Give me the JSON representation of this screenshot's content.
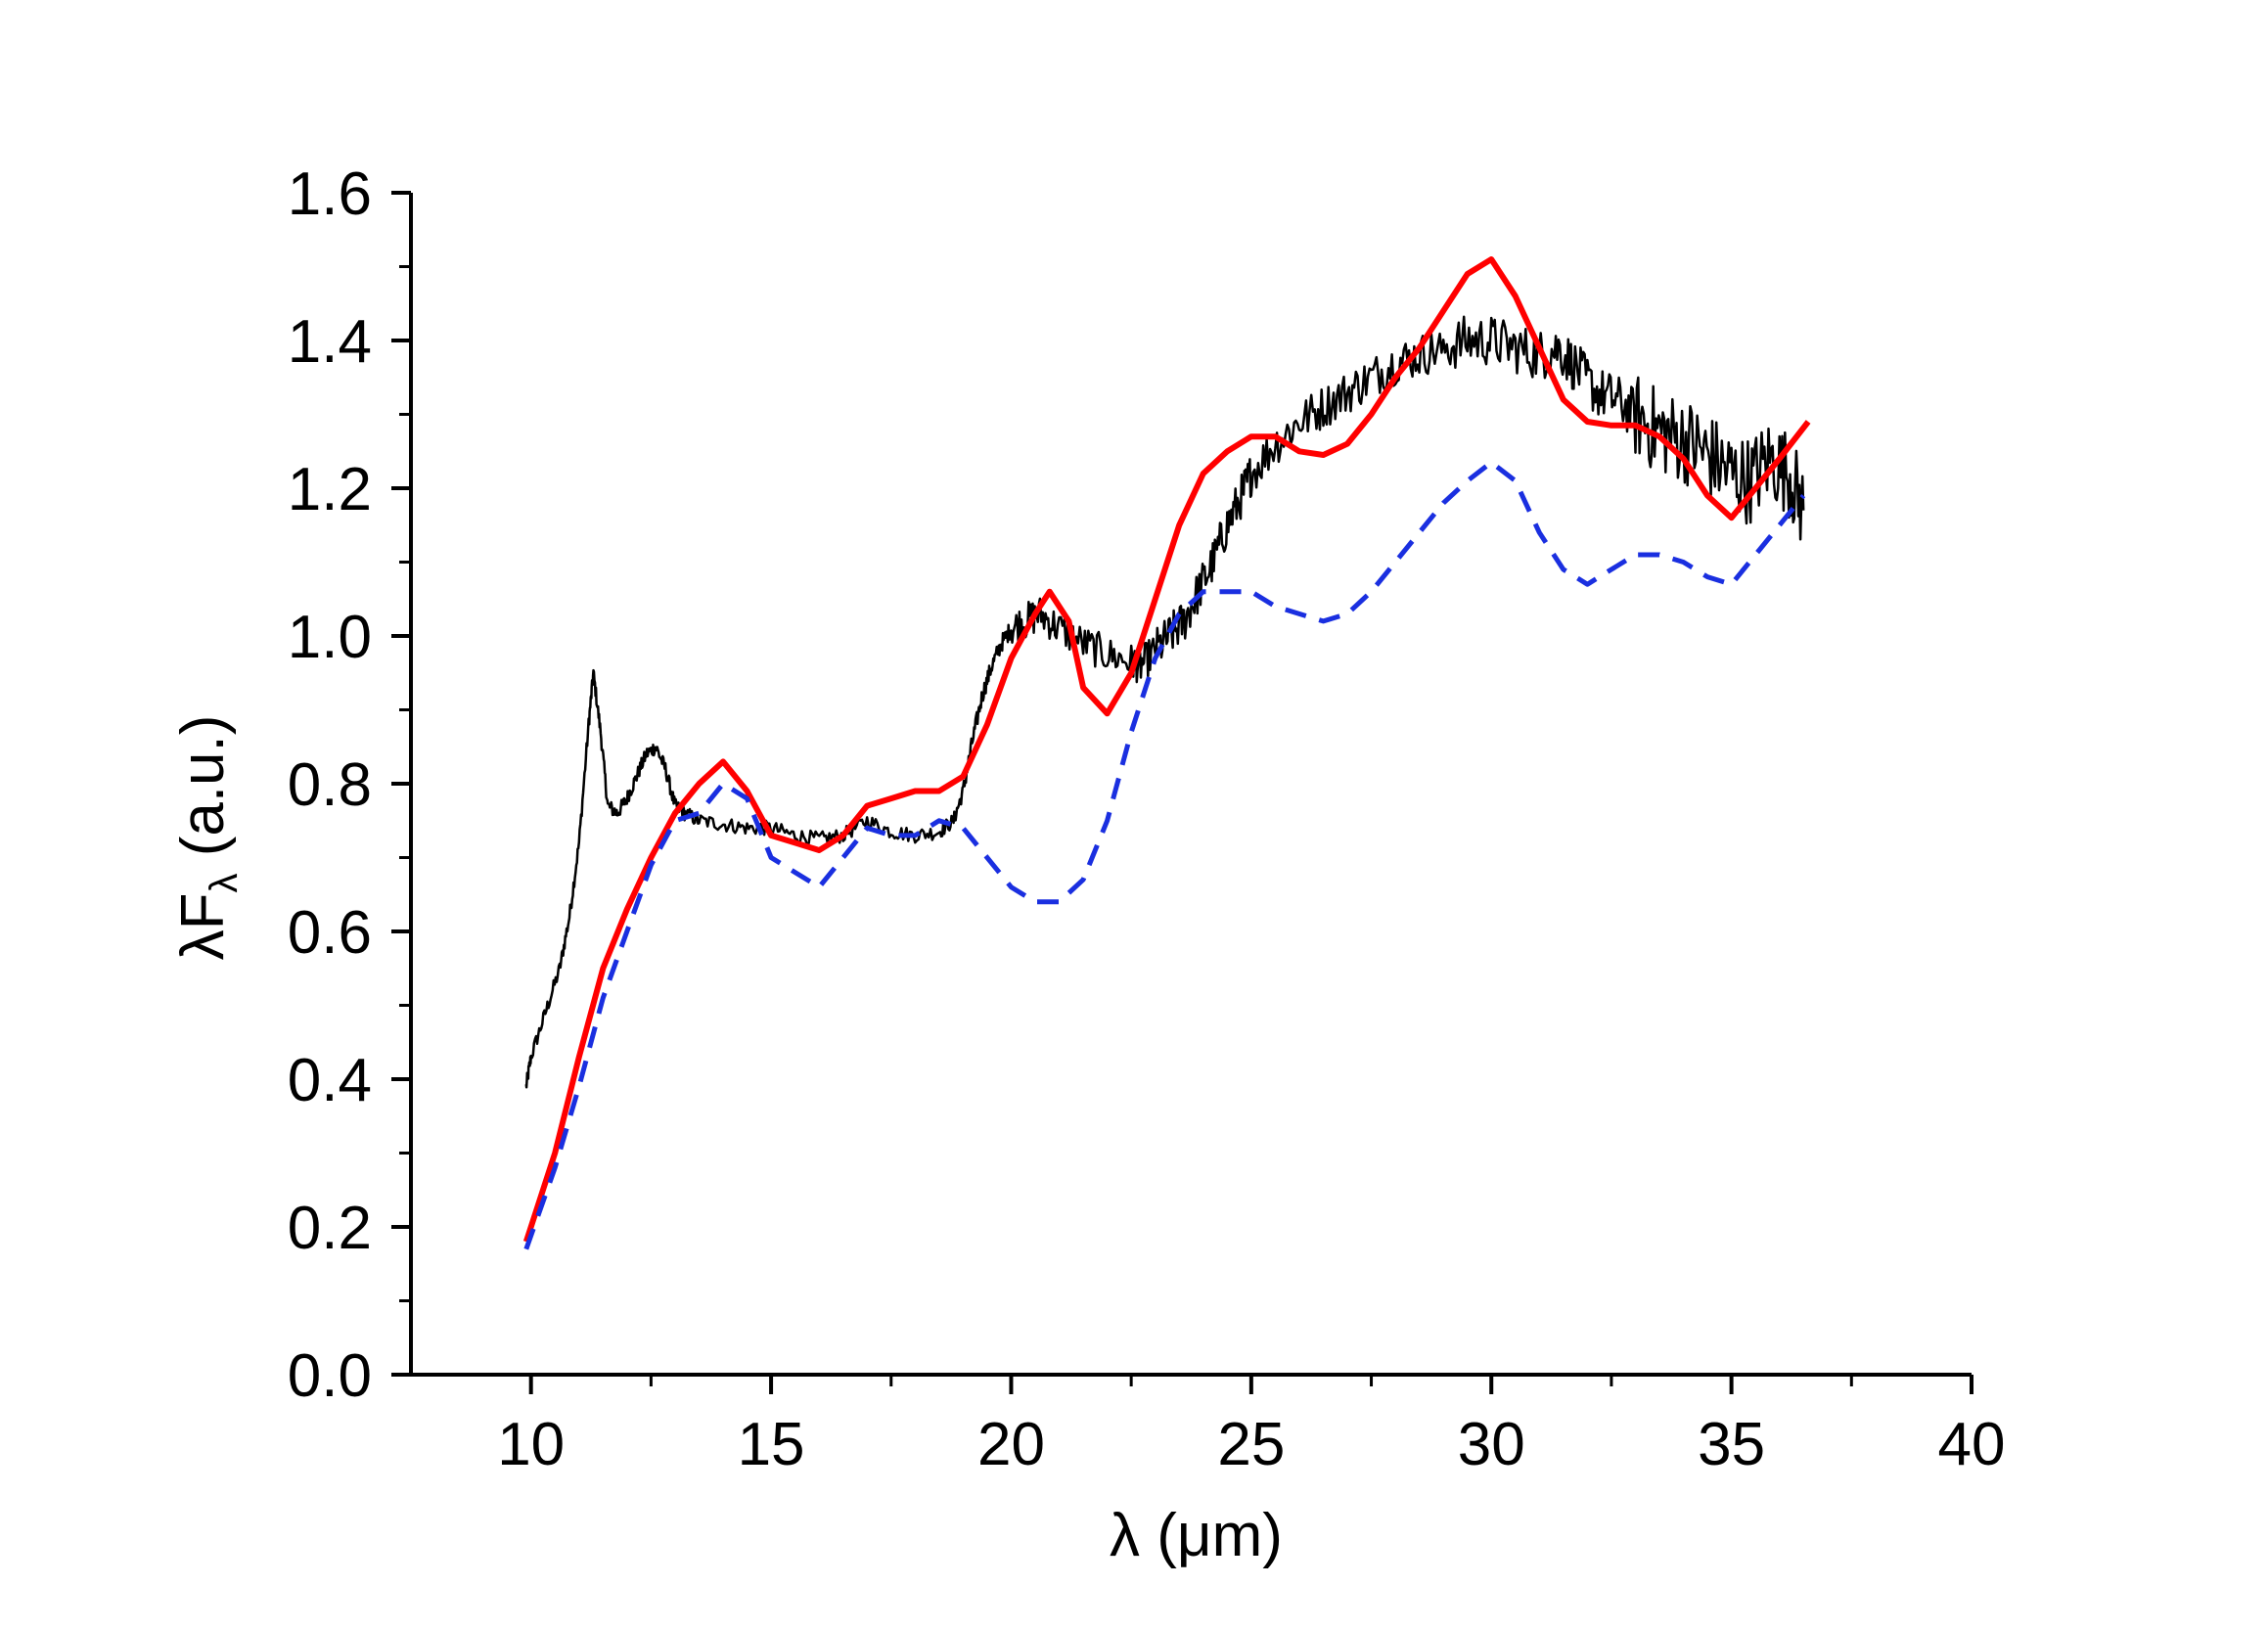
{
  "chart_data": {
    "type": "line",
    "xlabel": "λ (μm)",
    "ylabel": {
      "main": "λF",
      "subscript": "λ",
      "suffix": " (a.u.)"
    },
    "xlim": [
      7.5,
      40
    ],
    "ylim": [
      0,
      1.6
    ],
    "x_ticks": [
      "10",
      "15",
      "20",
      "25",
      "30",
      "35",
      "40"
    ],
    "y_ticks": [
      "0.0",
      "0.2",
      "0.4",
      "0.6",
      "0.8",
      "1.0",
      "1.2",
      "1.4",
      "1.6"
    ],
    "grid": false,
    "legend": "none",
    "series": [
      {
        "style": "solid-thin",
        "color": "#000000",
        "noisy": true,
        "x": [
          9.9,
          10.0,
          10.3,
          10.6,
          10.8,
          11.0,
          11.2,
          11.3,
          11.45,
          11.6,
          11.8,
          12.0,
          12.2,
          12.4,
          12.6,
          12.8,
          13.0,
          13.2,
          13.5,
          14.0,
          14.5,
          15.0,
          15.5,
          16.0,
          16.5,
          17.0,
          17.5,
          18.0,
          18.5,
          18.8,
          19.0,
          19.2,
          19.4,
          19.6,
          19.8,
          20.0,
          20.3,
          20.6,
          21.0,
          21.5,
          22.0,
          22.5,
          22.7,
          23.0,
          23.3,
          23.6,
          23.9,
          24.2,
          24.5,
          24.8,
          25.0,
          25.5,
          26.0,
          26.5,
          27.0,
          27.5,
          28.0,
          28.5,
          29.0,
          29.5,
          30.0,
          30.5,
          31.0,
          31.4,
          31.8,
          32.2,
          32.6,
          33.0,
          33.4,
          33.8,
          34.2,
          34.6,
          35.0,
          35.4,
          35.8,
          36.2,
          36.5
        ],
        "y": [
          0.39,
          0.43,
          0.49,
          0.55,
          0.62,
          0.72,
          0.88,
          0.95,
          0.87,
          0.77,
          0.76,
          0.78,
          0.81,
          0.84,
          0.85,
          0.82,
          0.77,
          0.76,
          0.75,
          0.745,
          0.74,
          0.74,
          0.73,
          0.725,
          0.73,
          0.75,
          0.735,
          0.73,
          0.735,
          0.75,
          0.79,
          0.86,
          0.92,
          0.96,
          0.99,
          1.01,
          1.02,
          1.03,
          1.01,
          0.99,
          0.975,
          0.965,
          0.96,
          0.98,
          1.0,
          1.02,
          1.06,
          1.1,
          1.15,
          1.19,
          1.22,
          1.26,
          1.29,
          1.31,
          1.33,
          1.35,
          1.37,
          1.38,
          1.39,
          1.4,
          1.4,
          1.39,
          1.38,
          1.39,
          1.36,
          1.33,
          1.32,
          1.3,
          1.28,
          1.27,
          1.26,
          1.24,
          1.22,
          1.21,
          1.24,
          1.22,
          1.17
        ]
      },
      {
        "style": "solid-thick",
        "color": "#ff0000",
        "x": [
          9.9,
          10.5,
          11.0,
          11.5,
          12.0,
          12.5,
          13.0,
          13.5,
          14.0,
          14.5,
          15.0,
          15.5,
          16.0,
          16.5,
          17.0,
          17.5,
          18.0,
          18.5,
          19.0,
          19.5,
          20.0,
          20.5,
          20.8,
          21.2,
          21.5,
          22.0,
          22.5,
          23.0,
          23.5,
          24.0,
          24.5,
          25.0,
          25.5,
          26.0,
          26.5,
          27.0,
          27.5,
          28.0,
          28.5,
          29.0,
          29.5,
          30.0,
          30.5,
          31.0,
          31.5,
          32.0,
          32.5,
          33.0,
          33.5,
          34.0,
          34.5,
          35.0,
          35.5,
          36.0,
          36.6
        ],
        "y": [
          0.18,
          0.3,
          0.43,
          0.55,
          0.63,
          0.7,
          0.76,
          0.8,
          0.83,
          0.79,
          0.73,
          0.72,
          0.71,
          0.73,
          0.77,
          0.78,
          0.79,
          0.79,
          0.81,
          0.88,
          0.97,
          1.03,
          1.06,
          1.02,
          0.93,
          0.895,
          0.95,
          1.05,
          1.15,
          1.22,
          1.25,
          1.27,
          1.27,
          1.25,
          1.245,
          1.26,
          1.3,
          1.35,
          1.39,
          1.44,
          1.49,
          1.51,
          1.46,
          1.39,
          1.32,
          1.29,
          1.285,
          1.285,
          1.27,
          1.24,
          1.19,
          1.16,
          1.2,
          1.24,
          1.29
        ]
      },
      {
        "style": "dashed",
        "color": "#1a2fe0",
        "x": [
          9.9,
          10.5,
          11.0,
          11.5,
          12.0,
          12.5,
          13.0,
          13.5,
          14.0,
          14.5,
          15.0,
          15.5,
          16.0,
          16.5,
          17.0,
          17.5,
          18.0,
          18.5,
          19.0,
          19.5,
          20.0,
          20.5,
          21.0,
          21.5,
          22.0,
          22.5,
          23.0,
          23.5,
          24.0,
          24.5,
          25.0,
          25.5,
          26.0,
          26.5,
          27.0,
          27.5,
          28.0,
          28.5,
          29.0,
          29.5,
          30.0,
          30.5,
          31.0,
          31.5,
          32.0,
          32.5,
          33.0,
          33.5,
          34.0,
          34.5,
          35.0,
          35.5,
          36.0,
          36.5
        ],
        "y": [
          0.17,
          0.28,
          0.39,
          0.51,
          0.6,
          0.69,
          0.75,
          0.76,
          0.8,
          0.78,
          0.7,
          0.68,
          0.66,
          0.7,
          0.74,
          0.73,
          0.73,
          0.75,
          0.74,
          0.7,
          0.66,
          0.64,
          0.64,
          0.67,
          0.75,
          0.87,
          0.97,
          1.03,
          1.06,
          1.06,
          1.06,
          1.04,
          1.03,
          1.02,
          1.03,
          1.06,
          1.1,
          1.14,
          1.18,
          1.21,
          1.235,
          1.21,
          1.14,
          1.09,
          1.07,
          1.09,
          1.11,
          1.11,
          1.1,
          1.08,
          1.07,
          1.11,
          1.15,
          1.19
        ]
      }
    ]
  }
}
